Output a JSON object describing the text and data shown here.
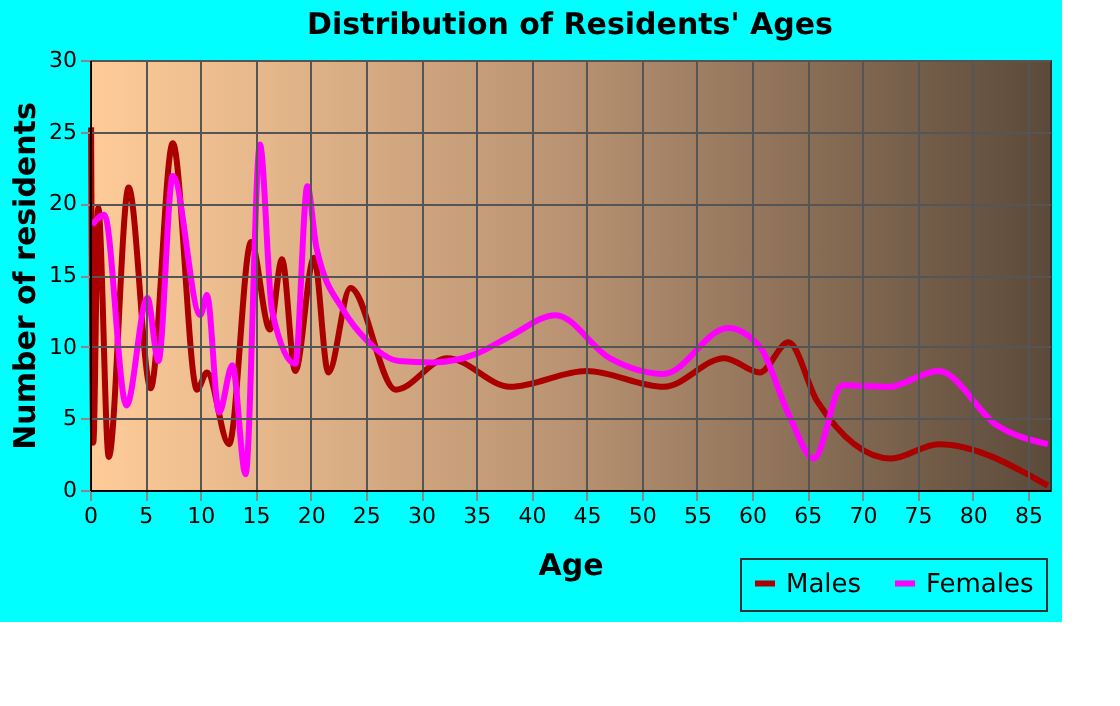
{
  "chart_data": {
    "type": "line",
    "title": "Distribution of Residents' Ages",
    "xlabel": "Age",
    "ylabel": "Number of residents",
    "xlim": [
      0,
      87
    ],
    "xticks": [
      0,
      5,
      10,
      15,
      20,
      25,
      30,
      35,
      40,
      45,
      50,
      55,
      60,
      65,
      70,
      75,
      80,
      85
    ],
    "ylim": [
      0,
      30
    ],
    "yticks": [
      0,
      5,
      10,
      15,
      20,
      25,
      30
    ],
    "grid": true,
    "legend": "bottom right",
    "marker": "none",
    "line_style": "solid",
    "series": [
      {
        "name": "Males",
        "color": "#aa0000",
        "x": [
          0.1,
          0.3,
          0.75,
          1.7,
          3.5,
          5.5,
          7.5,
          9.7,
          10.6,
          12.6,
          14.6,
          16.3,
          17.4,
          18.6,
          20.3,
          21.6,
          23.6,
          27.7,
          32.4,
          38.1,
          45.0,
          52.0,
          57.5,
          60.7,
          63.3,
          65.9,
          72.6,
          76.9,
          86.8
        ],
        "values": [
          25.3,
          3.3,
          19.7,
          2.3,
          21.1,
          7.1,
          24.2,
          7.0,
          8.2,
          3.2,
          17.3,
          11.2,
          16.1,
          8.3,
          16.2,
          8.2,
          14.1,
          7.0,
          9.2,
          7.2,
          8.3,
          7.2,
          9.2,
          8.2,
          10.3,
          6.2,
          2.2,
          3.2,
          0.3
        ]
      },
      {
        "name": "Females",
        "color": "#ff00ff",
        "x": [
          0.2,
          1.3,
          3.3,
          5.2,
          6.2,
          7.5,
          10.0,
          10.6,
          11.7,
          12.9,
          14.1,
          15.4,
          16.5,
          18.6,
          19.7,
          20.5,
          23.0,
          25.0,
          28.0,
          31.0,
          35.0,
          38.0,
          42.2,
          47.1,
          52.0,
          57.8,
          60.7,
          63.3,
          65.6,
          68.2,
          72.3,
          76.9,
          82.2,
          86.8
        ],
        "values": [
          18.5,
          19.2,
          5.9,
          13.4,
          9.0,
          21.9,
          12.2,
          13.6,
          5.4,
          8.7,
          1.1,
          24.1,
          12.5,
          8.8,
          21.2,
          17.0,
          12.5,
          10.5,
          9.0,
          8.9,
          9.5,
          10.7,
          12.2,
          9.2,
          8.1,
          11.3,
          10.0,
          5.3,
          2.2,
          7.3,
          7.2,
          8.3,
          4.5,
          3.2
        ]
      }
    ]
  }
}
